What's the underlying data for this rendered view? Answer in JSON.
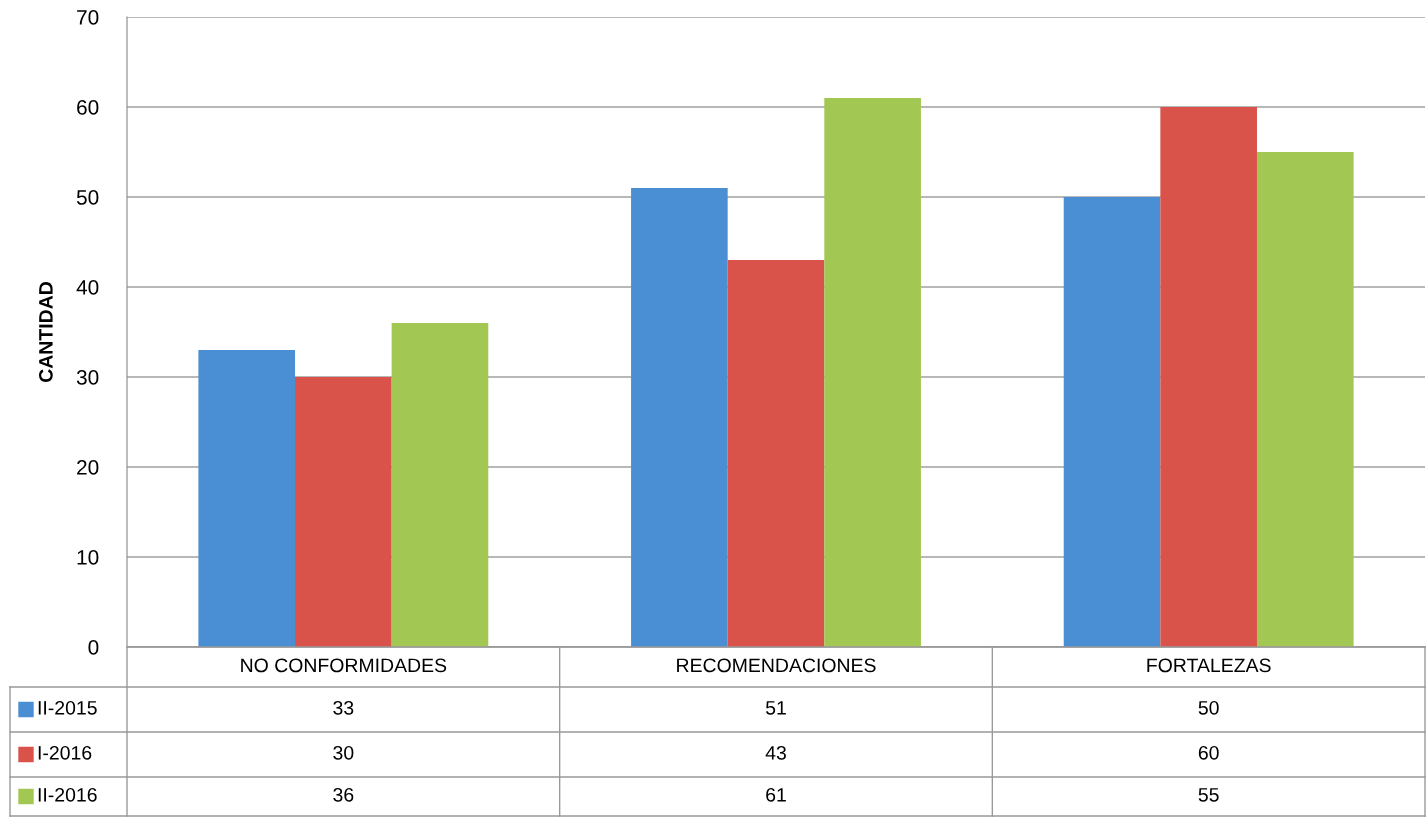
{
  "chart_data": {
    "type": "bar",
    "ylabel": "CANTIDAD",
    "categories": [
      "NO CONFORMIDADES",
      "RECOMENDACIONES",
      "FORTALEZAS"
    ],
    "series": [
      {
        "name": "II-2015",
        "color": "#4a8fd4",
        "values": [
          33,
          51,
          50
        ]
      },
      {
        "name": "I-2016",
        "color": "#d9534a",
        "values": [
          30,
          43,
          60
        ]
      },
      {
        "name": "II-2016",
        "color": "#a2c752",
        "values": [
          36,
          61,
          55
        ]
      }
    ],
    "ylim": [
      0,
      70
    ],
    "yticks": [
      0,
      10,
      20,
      30,
      40,
      50,
      60,
      70
    ],
    "grid": "y",
    "data_labels": true,
    "legend": "bottom left"
  }
}
